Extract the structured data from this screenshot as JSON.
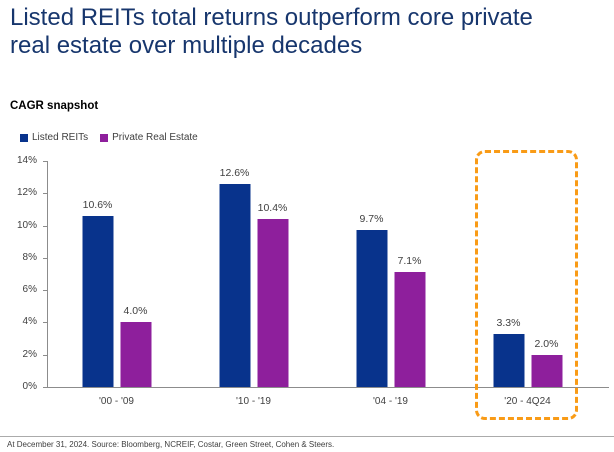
{
  "title": {
    "full": "Listed REITs total returns outperform core private real estate over multiple decades",
    "line1": "Listed REITs total returns outperform core private",
    "line2": "real estate over multiple decades"
  },
  "subtitle": "CAGR snapshot",
  "legend": [
    {
      "label": "Listed REITs",
      "color": "#08338C"
    },
    {
      "label": "Private Real Estate",
      "color": "#8E1F9C"
    }
  ],
  "footer": "At December 31, 2024. Source: Bloomberg, NCREIF, Costar, Green Street, Cohen & Steers.",
  "colors": {
    "title_text": "#17366D",
    "listed_reits_bar": "#08338C",
    "private_real_estate_bar": "#8E1F9C",
    "highlight_box": "#F99B16",
    "axis": "#8C8C8C",
    "labels": "#404040"
  },
  "chart_data": {
    "type": "bar",
    "title": "CAGR snapshot",
    "categories": [
      "'00 - '09",
      "'10 - '19",
      "'04 - '19",
      "'20 - 4Q24"
    ],
    "series": [
      {
        "name": "Listed REITs",
        "color": "#08338C",
        "values": [
          10.6,
          12.6,
          9.7,
          3.3
        ]
      },
      {
        "name": "Private Real Estate",
        "color": "#8E1F9C",
        "values": [
          4.0,
          10.4,
          7.1,
          2.0
        ]
      }
    ],
    "data_labels": [
      [
        "10.6%",
        "12.6%",
        "9.7%",
        "3.3%"
      ],
      [
        "4.0%",
        "10.4%",
        "7.1%",
        "2.0%"
      ]
    ],
    "ylim": [
      0,
      14
    ],
    "yticks": [
      "0%",
      "2%",
      "4%",
      "6%",
      "8%",
      "10%",
      "12%",
      "14%"
    ],
    "ytick_values": [
      0,
      2,
      4,
      6,
      8,
      10,
      12,
      14
    ],
    "grid": false,
    "legend_position": "top-left",
    "highlight": {
      "category": "'20 - 4Q24",
      "style": "dashed-box",
      "color": "#F99B16"
    }
  }
}
